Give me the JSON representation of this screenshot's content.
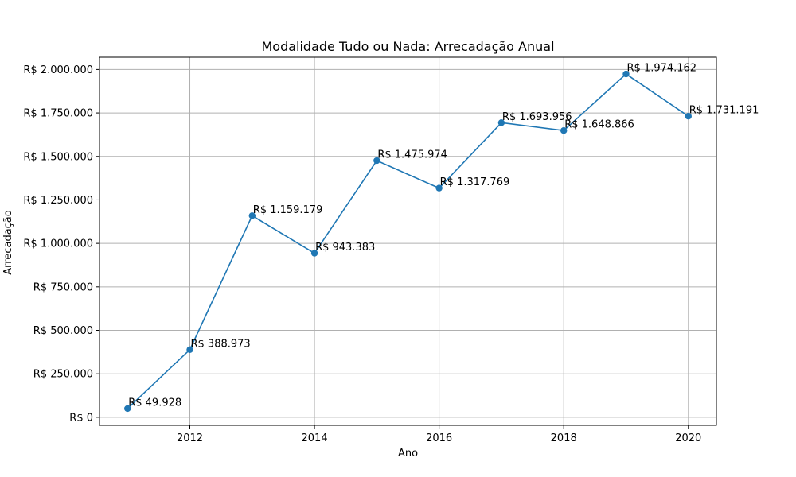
{
  "chart_data": {
    "type": "line",
    "title": "Modalidade Tudo ou Nada: Arrecadação Anual",
    "xlabel": "Ano",
    "ylabel": "Arrecadação",
    "x": [
      2011,
      2012,
      2013,
      2014,
      2015,
      2016,
      2017,
      2018,
      2019,
      2020
    ],
    "series": [
      {
        "values": [
          49928,
          388973,
          1159179,
          943383,
          1475974,
          1317769,
          1693956,
          1648866,
          1974162,
          1731191
        ],
        "labels": [
          "R$ 49.928",
          "R$ 388.973",
          "R$ 1.159.179",
          "R$ 943.383",
          "R$ 1.475.974",
          "R$ 1.317.769",
          "R$ 1.693.956",
          "R$ 1.648.866",
          "R$ 1.974.162",
          "R$ 1.731.191"
        ],
        "color": "#1f77b4",
        "marker": "circle"
      }
    ],
    "xlim": [
      2010.55,
      2020.45
    ],
    "ylim": [
      -46284,
      2070374
    ],
    "xticks": [
      2012,
      2014,
      2016,
      2018,
      2020
    ],
    "xtick_labels": [
      "2012",
      "2014",
      "2016",
      "2018",
      "2020"
    ],
    "yticks": [
      0,
      250000,
      500000,
      750000,
      1000000,
      1250000,
      1500000,
      1750000,
      2000000
    ],
    "ytick_labels": [
      "R$ 0",
      "R$ 250.000",
      "R$ 500.000",
      "R$ 750.000",
      "R$ 1.000.000",
      "R$ 1.250.000",
      "R$ 1.500.000",
      "R$ 1.750.000",
      "R$ 2.000.000"
    ],
    "grid": true,
    "legend": "none"
  }
}
